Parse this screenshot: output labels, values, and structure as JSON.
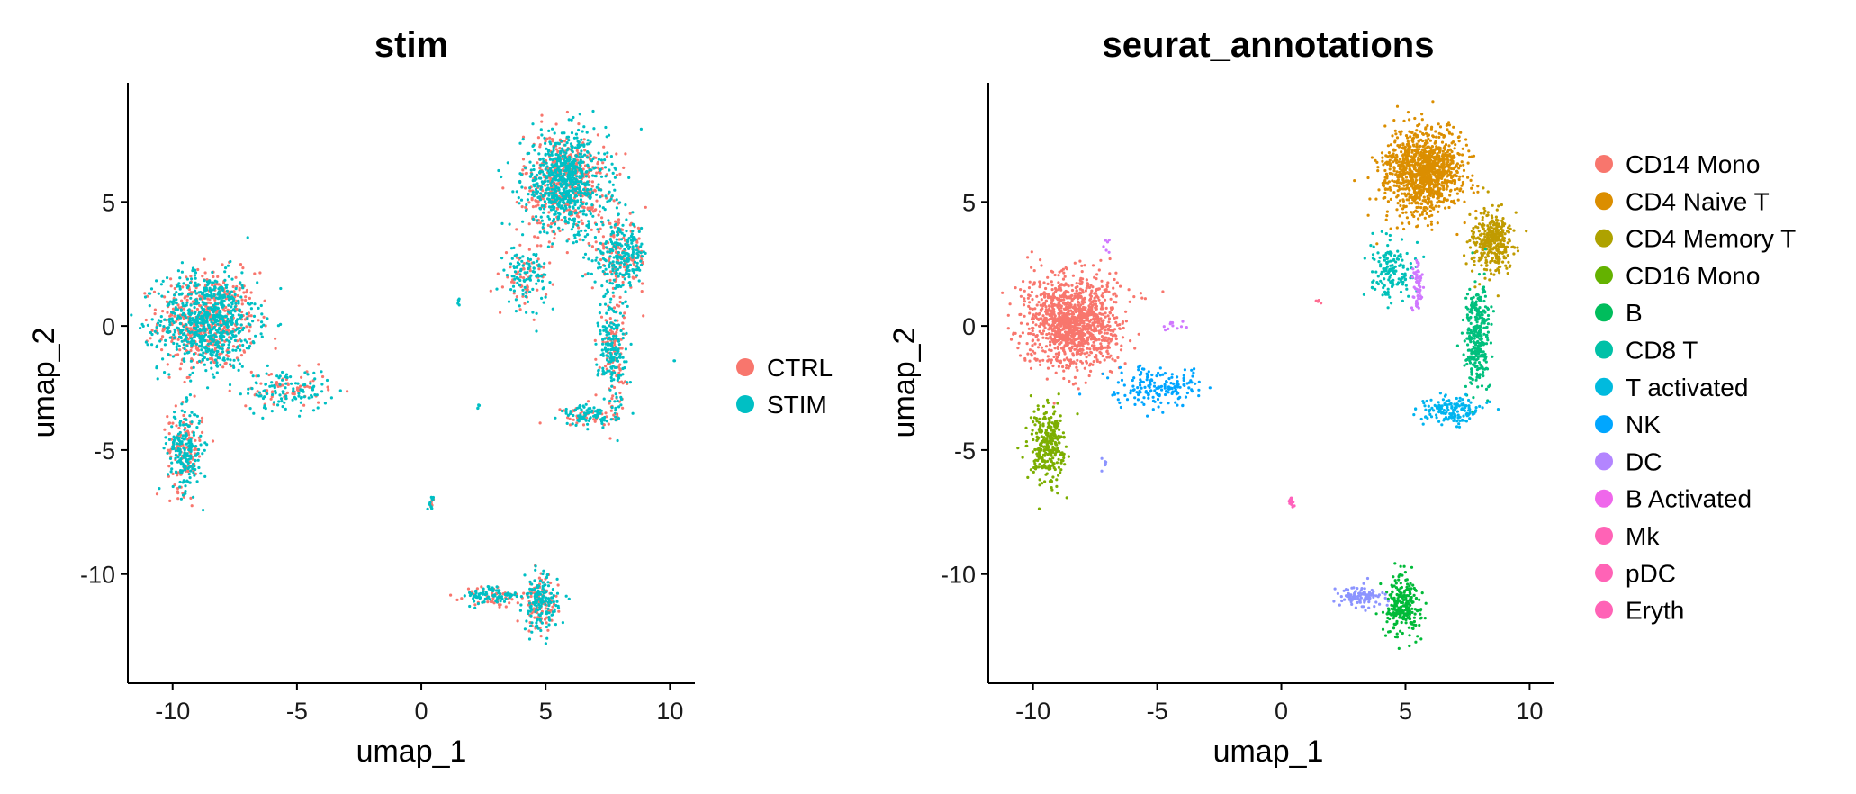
{
  "chart_data": [
    {
      "type": "scatter",
      "title": "stim",
      "xlabel": "umap_1",
      "ylabel": "umap_2",
      "xlim": [
        -11.8,
        11.0
      ],
      "ylim": [
        -14.4,
        9.8
      ],
      "xticks": [
        -10,
        -5,
        0,
        5,
        10
      ],
      "yticks": [
        -10,
        -5,
        0,
        5
      ],
      "xtick_labels": [
        "-10",
        "-5",
        "0",
        "5",
        "10"
      ],
      "ytick_labels": [
        "-10",
        "-5",
        "0",
        "5"
      ],
      "grid": false,
      "legend_position": "right",
      "colors": {
        "CTRL": "#F8766D",
        "STIM": "#00BFC4"
      },
      "legend": [
        "CTRL",
        "STIM"
      ],
      "clusters": [
        {
          "label": "CTRL",
          "x": -8.6,
          "y": 0.2,
          "sx": 1.4,
          "sy": 1.4,
          "n": 500
        },
        {
          "label": "STIM",
          "x": -8.6,
          "y": 0.2,
          "sx": 1.4,
          "sy": 1.4,
          "n": 700
        },
        {
          "label": "CTRL",
          "x": -9.5,
          "y": -5.0,
          "sx": 0.5,
          "sy": 1.2,
          "n": 120
        },
        {
          "label": "STIM",
          "x": -9.5,
          "y": -5.0,
          "sx": 0.5,
          "sy": 1.2,
          "n": 200
        },
        {
          "label": "CTRL",
          "x": -5.4,
          "y": -2.6,
          "sx": 1.2,
          "sy": 0.6,
          "n": 60
        },
        {
          "label": "STIM",
          "x": -5.4,
          "y": -2.6,
          "sx": 1.2,
          "sy": 0.6,
          "n": 110
        },
        {
          "label": "CTRL",
          "x": 5.8,
          "y": 5.8,
          "sx": 1.2,
          "sy": 1.4,
          "n": 450
        },
        {
          "label": "STIM",
          "x": 5.8,
          "y": 5.8,
          "sx": 1.2,
          "sy": 1.4,
          "n": 700
        },
        {
          "label": "CTRL",
          "x": 8.0,
          "y": 2.8,
          "sx": 0.8,
          "sy": 1.0,
          "n": 130
        },
        {
          "label": "STIM",
          "x": 8.0,
          "y": 2.8,
          "sx": 0.8,
          "sy": 1.0,
          "n": 230
        },
        {
          "label": "CTRL",
          "x": 4.2,
          "y": 2.0,
          "sx": 0.6,
          "sy": 0.9,
          "n": 60
        },
        {
          "label": "STIM",
          "x": 4.2,
          "y": 2.0,
          "sx": 0.6,
          "sy": 0.9,
          "n": 100
        },
        {
          "label": "CTRL",
          "x": 7.7,
          "y": -1.0,
          "sx": 0.4,
          "sy": 1.6,
          "n": 100
        },
        {
          "label": "STIM",
          "x": 7.7,
          "y": -1.0,
          "sx": 0.4,
          "sy": 1.6,
          "n": 170
        },
        {
          "label": "CTRL",
          "x": 6.8,
          "y": -3.6,
          "sx": 0.8,
          "sy": 0.3,
          "n": 50
        },
        {
          "label": "STIM",
          "x": 6.8,
          "y": -3.6,
          "sx": 0.8,
          "sy": 0.3,
          "n": 90
        },
        {
          "label": "CTRL",
          "x": 4.8,
          "y": -11.2,
          "sx": 0.5,
          "sy": 0.8,
          "n": 90
        },
        {
          "label": "STIM",
          "x": 4.8,
          "y": -11.2,
          "sx": 0.5,
          "sy": 0.8,
          "n": 150
        },
        {
          "label": "CTRL",
          "x": 2.9,
          "y": -10.9,
          "sx": 0.8,
          "sy": 0.3,
          "n": 50
        },
        {
          "label": "STIM",
          "x": 2.9,
          "y": -10.9,
          "sx": 0.8,
          "sy": 0.3,
          "n": 80
        },
        {
          "label": "CTRL",
          "x": 0.4,
          "y": -7.1,
          "sx": 0.08,
          "sy": 0.2,
          "n": 6
        },
        {
          "label": "STIM",
          "x": 0.4,
          "y": -7.1,
          "sx": 0.08,
          "sy": 0.2,
          "n": 12
        },
        {
          "label": "STIM",
          "x": 1.5,
          "y": 1.0,
          "sx": 0.07,
          "sy": 0.1,
          "n": 5
        },
        {
          "label": "STIM",
          "x": 2.3,
          "y": -3.3,
          "sx": 0.06,
          "sy": 0.1,
          "n": 4
        },
        {
          "label": "STIM",
          "x": 10.2,
          "y": -1.4,
          "sx": 0.05,
          "sy": 0.05,
          "n": 2
        }
      ]
    },
    {
      "type": "scatter",
      "title": "seurat_annotations",
      "xlabel": "umap_1",
      "ylabel": "umap_2",
      "xlim": [
        -11.8,
        11.0
      ],
      "ylim": [
        -14.4,
        9.8
      ],
      "xticks": [
        -10,
        -5,
        0,
        5,
        10
      ],
      "yticks": [
        -10,
        -5,
        0,
        5
      ],
      "xtick_labels": [
        "-10",
        "-5",
        "0",
        "5",
        "10"
      ],
      "ytick_labels": [
        "-10",
        "-5",
        "0",
        "5"
      ],
      "grid": false,
      "legend_position": "right",
      "colors": {
        "CD14 Mono": "#F8766D",
        "CD4 Naive T": "#DB8E00",
        "CD4 Memory T": "#AEA200",
        "CD16 Mono": "#64B200",
        "B": "#00BD5C",
        "CD8 T": "#00C1A7",
        "T activated": "#00BADE",
        "NK": "#00A6FF",
        "DC": "#B385FF",
        "B Activated": "#EF67EB",
        "Mk": "#FF63B6",
        "pDC": "#FF63B6",
        "Eryth": "#FF63B6"
      },
      "point_colors": {
        "CD14 Mono": "#F8766D",
        "CD4 Naive T": "#DB8E00",
        "CD4 Memory T": "#C09B00",
        "CD16 Mono": "#7CAE00",
        "B": "#00BA38",
        "CD8 T": "#00BF7D",
        "T activated": "#00C0B8",
        "NK": "#00B4EF",
        "DC": "#00A5FF",
        "B Activated": "#8C94FF",
        "Mk": "#D078FF",
        "pDC": "#FF62BC",
        "Eryth": "#FF6C91"
      },
      "legend": [
        "CD14 Mono",
        "CD4 Naive T",
        "CD4 Memory T",
        "CD16 Mono",
        "B",
        "CD8 T",
        "T activated",
        "NK",
        "DC",
        "B Activated",
        "Mk",
        "pDC",
        "Eryth"
      ],
      "clusters": [
        {
          "label": "CD14 Mono",
          "x": -8.4,
          "y": 0.2,
          "sx": 1.3,
          "sy": 1.3,
          "n": 1200
        },
        {
          "label": "CD16 Mono",
          "x": -9.4,
          "y": -4.8,
          "sx": 0.5,
          "sy": 1.1,
          "n": 300
        },
        {
          "label": "DC",
          "x": -5.0,
          "y": -2.5,
          "sx": 1.3,
          "sy": 0.6,
          "n": 170
        },
        {
          "label": "CD4 Naive T",
          "x": 5.7,
          "y": 6.2,
          "sx": 1.1,
          "sy": 1.2,
          "n": 1100
        },
        {
          "label": "CD4 Memory T",
          "x": 8.5,
          "y": 3.3,
          "sx": 0.6,
          "sy": 0.9,
          "n": 350
        },
        {
          "label": "T activated",
          "x": 4.4,
          "y": 2.2,
          "sx": 0.6,
          "sy": 0.9,
          "n": 150
        },
        {
          "label": "CD8 T",
          "x": 7.9,
          "y": -0.4,
          "sx": 0.4,
          "sy": 1.5,
          "n": 300
        },
        {
          "label": "NK",
          "x": 6.8,
          "y": -3.4,
          "sx": 0.8,
          "sy": 0.4,
          "n": 150
        },
        {
          "label": "B",
          "x": 4.9,
          "y": -11.3,
          "sx": 0.5,
          "sy": 0.9,
          "n": 250
        },
        {
          "label": "B Activated",
          "x": 3.2,
          "y": -10.9,
          "sx": 0.7,
          "sy": 0.3,
          "n": 110
        },
        {
          "label": "Mk",
          "x": 5.5,
          "y": 1.6,
          "sx": 0.15,
          "sy": 0.9,
          "n": 60
        },
        {
          "label": "Mk",
          "x": -4.3,
          "y": 0.0,
          "sx": 0.3,
          "sy": 0.2,
          "n": 12
        },
        {
          "label": "Mk",
          "x": -7.0,
          "y": 3.2,
          "sx": 0.1,
          "sy": 0.2,
          "n": 6
        },
        {
          "label": "pDC",
          "x": 0.4,
          "y": -7.1,
          "sx": 0.08,
          "sy": 0.2,
          "n": 16
        },
        {
          "label": "Eryth",
          "x": 1.5,
          "y": 1.0,
          "sx": 0.07,
          "sy": 0.1,
          "n": 5
        },
        {
          "label": "B Activated",
          "x": -7.1,
          "y": -5.5,
          "sx": 0.1,
          "sy": 0.2,
          "n": 6
        }
      ]
    }
  ]
}
